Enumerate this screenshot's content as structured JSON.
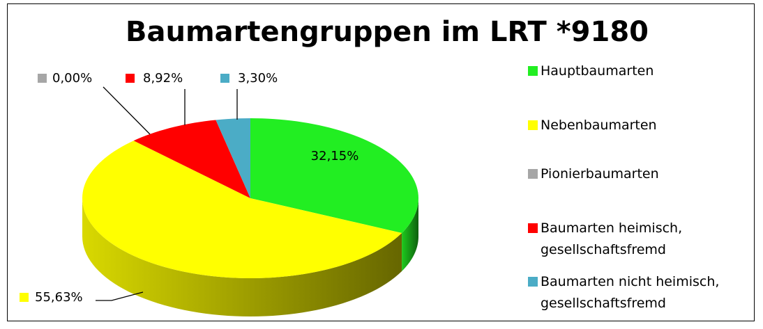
{
  "chart_data": {
    "type": "pie",
    "title": "Baumartengruppen im LRT *9180",
    "categories": [
      "Hauptbaumarten",
      "Nebenbaumarten",
      "Pionierbaumarten",
      "Baumarten heimisch, gesellschaftsfremd",
      "Baumarten nicht heimisch, gesellschaftsfremd"
    ],
    "values": [
      32.15,
      55.63,
      0,
      8.92,
      3.3
    ],
    "value_labels": [
      "32,15%",
      "55,63%",
      "0,00%",
      "8,92%",
      "3,30%"
    ],
    "colors": [
      "#22ee22",
      "#ffff00",
      "#a6a6a6",
      "#ff0000",
      "#4bacc6"
    ],
    "legend": "right"
  }
}
